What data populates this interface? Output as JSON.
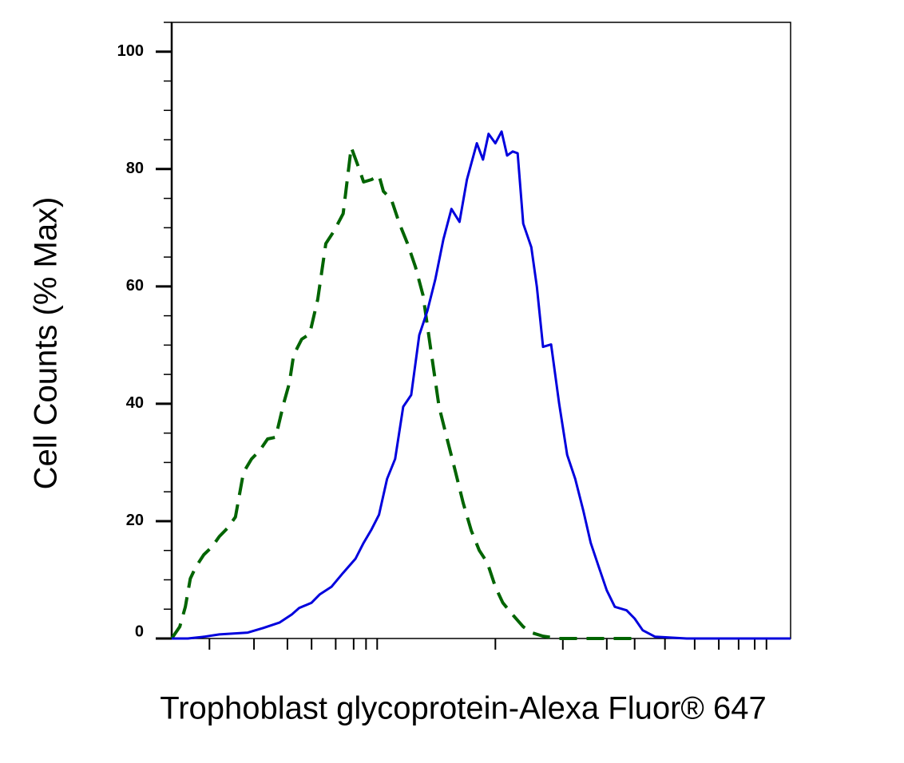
{
  "chart_data": {
    "type": "line",
    "x_label": "Trophoblast glycoprotein-Alexa Fluor® 647",
    "y_label": "Cell Counts (% Max)",
    "xlim": [
      0,
      100
    ],
    "ylim": [
      0,
      105
    ],
    "xticks": [
      6.1,
      13.3,
      18.7,
      22.6,
      26.5,
      29.4,
      31.4,
      33.2,
      52.3,
      63.2,
      70.3,
      74.8,
      79.7,
      84.5,
      88.4,
      91.6,
      94.2,
      96.1
    ],
    "yticks": [
      0,
      20,
      40,
      60,
      80,
      100
    ],
    "series": [
      {
        "color": "#006400",
        "dash": true,
        "x": [
          0,
          1.3,
          2.2,
          3.0,
          3.9,
          5.2,
          6.5,
          7.7,
          9.0,
          10.3,
          11.6,
          12.9,
          14.2,
          15.5,
          16.8,
          18.1,
          19.0,
          19.7,
          21.0,
          22.3,
          23.6,
          24.9,
          26.2,
          27.7,
          29.0,
          30.3,
          31.0,
          32.3,
          33.5,
          34.2,
          35.5,
          36.8,
          38.1,
          39.4,
          40.6,
          41.9,
          43.2,
          44.5,
          45.8,
          47.1,
          48.4,
          49.7,
          51.0,
          52.3,
          53.5,
          54.8,
          56.8,
          58.1,
          60.0,
          62.6,
          65.2,
          70.3,
          75.5
        ],
        "values": [
          0,
          2.0,
          5.4,
          10.2,
          12.2,
          14.3,
          15.6,
          17.4,
          18.8,
          20.7,
          28.3,
          30.6,
          32.0,
          34.0,
          34.3,
          40.1,
          43.5,
          48.3,
          51.0,
          51.9,
          57.8,
          67.3,
          69.4,
          72.4,
          83.7,
          80.0,
          77.8,
          78.2,
          78.9,
          76.2,
          74.8,
          70.7,
          67.3,
          63.3,
          58.5,
          49.0,
          39.5,
          34.0,
          28.6,
          23.1,
          18.4,
          15.0,
          12.9,
          8.8,
          6.1,
          4.4,
          2.0,
          1.0,
          0.4,
          0,
          0,
          0,
          0
        ]
      },
      {
        "color": "#0000dd",
        "dash": false,
        "x": [
          0,
          2.6,
          5.2,
          7.7,
          12.3,
          14.8,
          17.4,
          19.4,
          20.6,
          22.6,
          23.9,
          25.8,
          27.7,
          29.7,
          31.0,
          32.3,
          33.5,
          34.8,
          36.1,
          37.4,
          38.7,
          40.0,
          41.3,
          42.6,
          43.9,
          45.2,
          46.5,
          47.7,
          49.3,
          50.3,
          51.2,
          52.3,
          53.3,
          54.2,
          55.1,
          55.9,
          56.8,
          58.1,
          59.0,
          60.0,
          61.3,
          62.6,
          63.9,
          65.2,
          66.5,
          67.7,
          69.0,
          70.3,
          71.6,
          73.5,
          74.8,
          76.1,
          78.1,
          83.2,
          100
        ],
        "values": [
          0,
          0,
          0.3,
          0.7,
          1.0,
          1.8,
          2.7,
          4.1,
          5.2,
          6.1,
          7.5,
          8.8,
          11.2,
          13.6,
          16.3,
          18.6,
          21.1,
          27.2,
          30.6,
          39.5,
          41.5,
          51.7,
          55.8,
          61.2,
          68.0,
          73.2,
          71.0,
          78.2,
          84.4,
          81.6,
          86.0,
          84.4,
          86.4,
          82.3,
          83.0,
          82.7,
          70.7,
          66.7,
          59.9,
          49.7,
          50.1,
          40.1,
          31.3,
          27.2,
          21.8,
          16.3,
          12.2,
          8.2,
          5.4,
          4.8,
          3.4,
          1.4,
          0.3,
          0,
          0
        ]
      }
    ]
  }
}
